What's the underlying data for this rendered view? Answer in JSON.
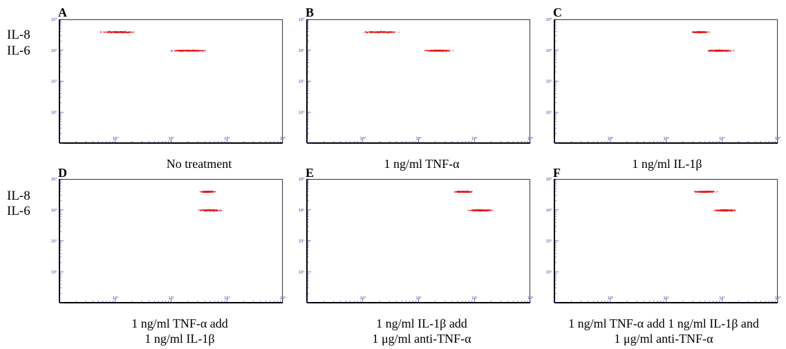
{
  "row_labels": {
    "top": [
      "IL-8",
      "IL-6"
    ],
    "bottom": [
      "IL-8",
      "IL-6"
    ]
  },
  "chart_data": [
    {
      "type": "scatter",
      "panel": "A",
      "caption": [
        "No treatment"
      ],
      "x_log_range": [
        0,
        4
      ],
      "y_log_range": [
        0,
        4
      ],
      "x_tick_labels": [
        "10⁰",
        "10¹",
        "10²",
        "10³"
      ],
      "y_tick_labels": [
        "10⁰",
        "10¹",
        "10²",
        "10³"
      ],
      "clusters": [
        {
          "analyte": "IL-8",
          "x_log_center": 1.05,
          "x_log_spread": 0.42,
          "y_log": 3.6,
          "n": 260
        },
        {
          "analyte": "IL-6",
          "x_log_center": 2.3,
          "x_log_spread": 0.42,
          "y_log": 3.0,
          "n": 300
        }
      ]
    },
    {
      "type": "scatter",
      "panel": "B",
      "caption": [
        "1 ng/ml TNF-α"
      ],
      "x_log_range": [
        0,
        4
      ],
      "y_log_range": [
        0,
        4
      ],
      "x_tick_labels": [
        "10⁰",
        "10¹",
        "10²",
        "10³"
      ],
      "y_tick_labels": [
        "10⁰",
        "10¹",
        "10²",
        "10³"
      ],
      "clusters": [
        {
          "analyte": "IL-8",
          "x_log_center": 1.3,
          "x_log_spread": 0.45,
          "y_log": 3.6,
          "n": 250
        },
        {
          "analyte": "IL-6",
          "x_log_center": 2.35,
          "x_log_spread": 0.32,
          "y_log": 3.0,
          "n": 300
        }
      ]
    },
    {
      "type": "scatter",
      "panel": "C",
      "caption": [
        "1 ng/ml IL-1β"
      ],
      "x_log_range": [
        0,
        4
      ],
      "y_log_range": [
        0,
        4
      ],
      "x_tick_labels": [
        "10⁰",
        "10¹",
        "10²",
        "10³"
      ],
      "y_tick_labels": [
        "10⁰",
        "10¹",
        "10²",
        "10³"
      ],
      "clusters": [
        {
          "analyte": "IL-8",
          "x_log_center": 2.6,
          "x_log_spread": 0.22,
          "y_log": 3.6,
          "n": 260
        },
        {
          "analyte": "IL-6",
          "x_log_center": 2.95,
          "x_log_spread": 0.3,
          "y_log": 3.0,
          "n": 330
        }
      ]
    },
    {
      "type": "scatter",
      "panel": "D",
      "caption": [
        "1 ng/ml TNF-α add",
        "1 ng/ml IL-1β"
      ],
      "x_log_range": [
        0,
        4
      ],
      "y_log_range": [
        0,
        4
      ],
      "x_tick_labels": [
        "10⁰",
        "10¹",
        "10²",
        "10³"
      ],
      "y_tick_labels": [
        "10⁰",
        "10¹",
        "10²",
        "10³"
      ],
      "clusters": [
        {
          "analyte": "IL-8",
          "x_log_center": 2.65,
          "x_log_spread": 0.18,
          "y_log": 3.6,
          "n": 260
        },
        {
          "analyte": "IL-6",
          "x_log_center": 2.7,
          "x_log_spread": 0.28,
          "y_log": 3.0,
          "n": 320
        }
      ]
    },
    {
      "type": "scatter",
      "panel": "E",
      "caption": [
        "1 ng/ml IL-1β add",
        "1 μg/ml anti-TNF-α"
      ],
      "x_log_range": [
        0,
        4
      ],
      "y_log_range": [
        0,
        4
      ],
      "x_tick_labels": [
        "10⁰",
        "10¹",
        "10²",
        "10³"
      ],
      "y_tick_labels": [
        "10⁰",
        "10¹",
        "10²",
        "10³"
      ],
      "clusters": [
        {
          "analyte": "IL-8",
          "x_log_center": 2.8,
          "x_log_spread": 0.22,
          "y_log": 3.6,
          "n": 260
        },
        {
          "analyte": "IL-6",
          "x_log_center": 3.1,
          "x_log_spread": 0.28,
          "y_log": 3.0,
          "n": 340
        }
      ]
    },
    {
      "type": "scatter",
      "panel": "F",
      "caption": [
        "1 ng/ml TNF-α add 1 ng/ml IL-1β and",
        "1 μg/ml anti-TNF-α"
      ],
      "x_log_range": [
        0,
        4
      ],
      "y_log_range": [
        0,
        4
      ],
      "x_tick_labels": [
        "10⁰",
        "10¹",
        "10²",
        "10³"
      ],
      "y_tick_labels": [
        "10⁰",
        "10¹",
        "10²",
        "10³"
      ],
      "clusters": [
        {
          "analyte": "IL-8",
          "x_log_center": 2.7,
          "x_log_spread": 0.28,
          "y_log": 3.6,
          "n": 260
        },
        {
          "analyte": "IL-6",
          "x_log_center": 3.05,
          "x_log_spread": 0.26,
          "y_log": 3.0,
          "n": 330
        }
      ]
    }
  ],
  "colors": {
    "points": "#e8141b",
    "axis": "#000000",
    "ticks": "#2a2a9a"
  }
}
